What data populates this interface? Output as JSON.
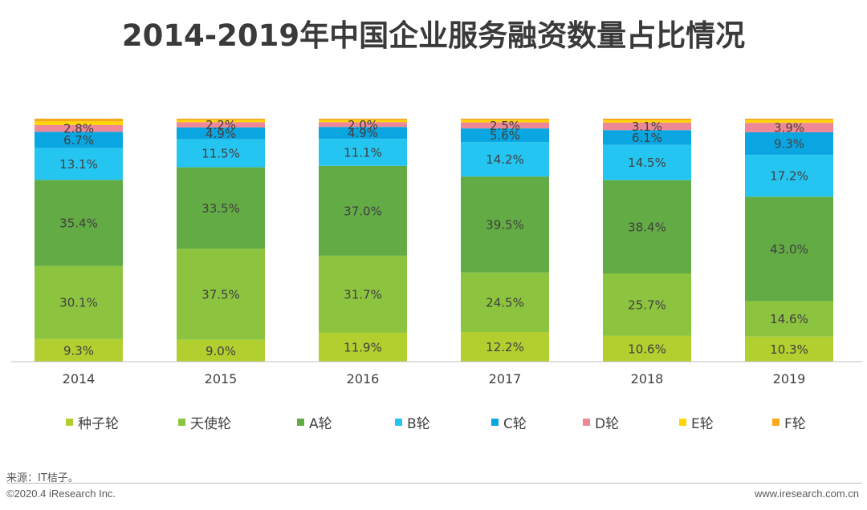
{
  "footer": {
    "source": "来源：IT桔子。",
    "copyright": "©2020.4 iResearch Inc.",
    "website": "www.iresearch.com.cn"
  },
  "chart_data": {
    "type": "bar",
    "stacked": true,
    "title": "2014-2019年中国企业服务融资数量占比情况",
    "categories": [
      "2014",
      "2015",
      "2016",
      "2017",
      "2018",
      "2019"
    ],
    "ylim": [
      0,
      100
    ],
    "unit": "%",
    "legend_position": "bottom",
    "grid": false,
    "series": [
      {
        "name": "种子轮",
        "color": "#b2cf30",
        "values": [
          9.3,
          9.0,
          11.9,
          12.2,
          10.6,
          10.3
        ],
        "labels": [
          "9.3%",
          "9.0%",
          "11.9%",
          "12.2%",
          "10.6%",
          "10.3%"
        ]
      },
      {
        "name": "天使轮",
        "color": "#8cc43f",
        "values": [
          30.1,
          37.5,
          31.7,
          24.5,
          25.7,
          14.6
        ],
        "labels": [
          "30.1%",
          "37.5%",
          "31.7%",
          "24.5%",
          "25.7%",
          "14.6%"
        ]
      },
      {
        "name": "A轮",
        "color": "#63ab44",
        "values": [
          35.4,
          33.5,
          37.0,
          39.5,
          38.4,
          43.0
        ],
        "labels": [
          "35.4%",
          "33.5%",
          "37.0%",
          "39.5%",
          "38.4%",
          "43.0%"
        ]
      },
      {
        "name": "B轮",
        "color": "#25c5f2",
        "values": [
          13.1,
          11.5,
          11.1,
          14.2,
          14.5,
          17.2
        ],
        "labels": [
          "13.1%",
          "11.5%",
          "11.1%",
          "14.2%",
          "14.5%",
          "17.2%"
        ]
      },
      {
        "name": "C轮",
        "color": "#0aa6e1",
        "values": [
          6.7,
          4.9,
          4.9,
          5.6,
          6.1,
          9.3
        ],
        "labels": [
          "6.7%",
          "4.9%",
          "4.9%",
          "5.6%",
          "6.1%",
          "9.3%"
        ]
      },
      {
        "name": "D轮",
        "color": "#ef8896",
        "values": [
          2.8,
          2.2,
          2.0,
          2.5,
          3.1,
          3.9
        ],
        "labels": [
          "2.8%",
          "2.2%",
          "2.0%",
          "2.5%",
          "3.1%",
          "3.9%"
        ]
      },
      {
        "name": "E轮",
        "color": "#ffd600",
        "values": [
          1.5,
          0.8,
          0.8,
          0.9,
          0.9,
          1.1
        ],
        "labels": [
          "",
          "",
          "",
          "",
          "",
          ""
        ]
      },
      {
        "name": "F轮",
        "color": "#f7a81b",
        "values": [
          1.1,
          0.6,
          0.6,
          0.6,
          0.7,
          0.6
        ],
        "labels": [
          "",
          "",
          "",
          "",
          "",
          ""
        ]
      }
    ]
  }
}
